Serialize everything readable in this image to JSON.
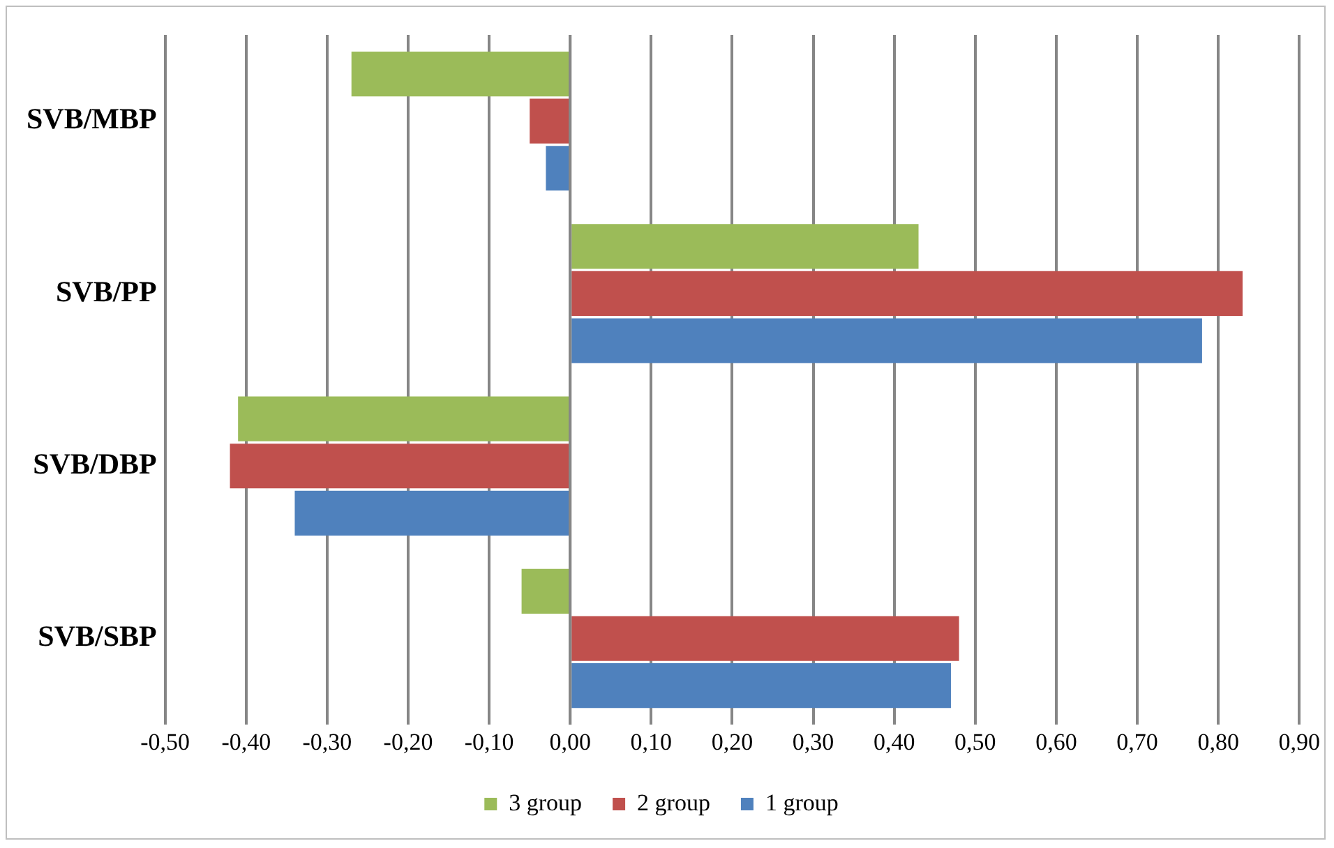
{
  "chart_data": {
    "type": "bar",
    "orientation": "horizontal",
    "categories": [
      "SVB/MBP",
      "SVB/PP",
      "SVB/DBP",
      "SVB/SBP"
    ],
    "series": [
      {
        "name": "3 group",
        "color": "#9bbb59",
        "values": [
          -0.27,
          0.43,
          -0.41,
          -0.06
        ]
      },
      {
        "name": "2 group",
        "color": "#c0504d",
        "values": [
          -0.05,
          0.83,
          -0.42,
          0.48
        ]
      },
      {
        "name": "1 group",
        "color": "#4f81bd",
        "values": [
          -0.03,
          0.78,
          -0.34,
          0.47
        ]
      }
    ],
    "xlim": [
      -0.5,
      0.9
    ],
    "xticks": [
      {
        "value": -0.5,
        "label": "-0,50"
      },
      {
        "value": -0.4,
        "label": "-0,40"
      },
      {
        "value": -0.3,
        "label": "-0,30"
      },
      {
        "value": -0.2,
        "label": "-0,20"
      },
      {
        "value": -0.1,
        "label": "-0,10"
      },
      {
        "value": 0,
        "label": "0,00"
      },
      {
        "value": 0.1,
        "label": "0,10"
      },
      {
        "value": 0.2,
        "label": "0,20"
      },
      {
        "value": 0.3,
        "label": "0,30"
      },
      {
        "value": 0.4,
        "label": "0,40"
      },
      {
        "value": 0.5,
        "label": "0,50"
      },
      {
        "value": 0.6,
        "label": "0,60"
      },
      {
        "value": 0.7,
        "label": "0,70"
      },
      {
        "value": 0.8,
        "label": "0,80"
      },
      {
        "value": 0.9,
        "label": "0,90"
      }
    ],
    "grid": "x",
    "legend": "bottom"
  }
}
